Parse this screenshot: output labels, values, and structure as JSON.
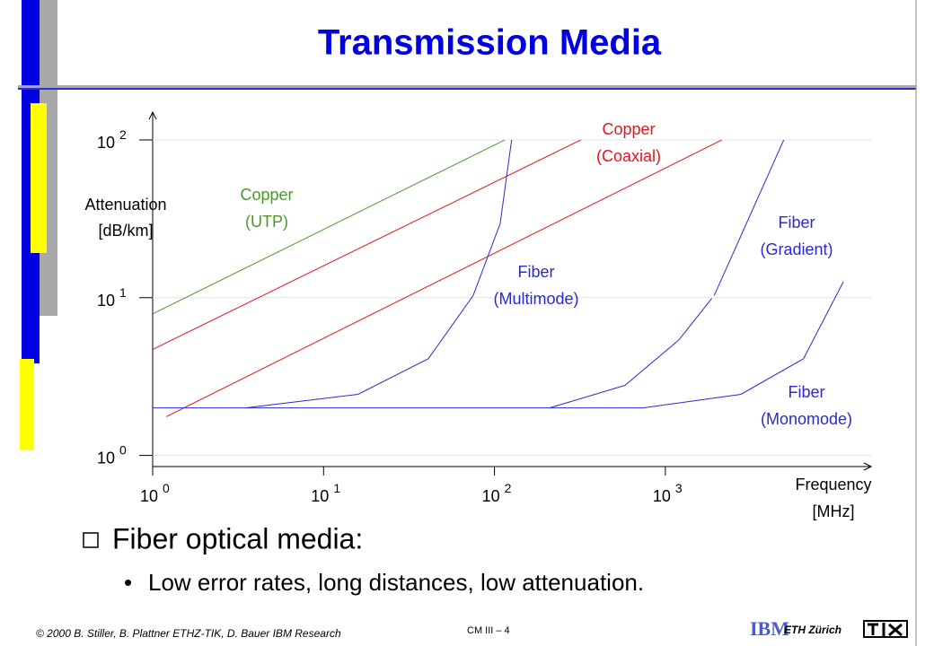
{
  "title": "Transmission Media",
  "bullets": {
    "main": "Fiber optical media:",
    "sub": "Low error rates, long distances, low attenuation."
  },
  "footer": {
    "copyright": "© 2000  B. Stiller, B. Plattner ETHZ-TIK, D. Bauer IBM Research",
    "page": "CM III  – 4",
    "logo": "IBM",
    "institute": "ETH Zürich"
  },
  "chart_data": {
    "type": "line",
    "log_x": true,
    "log_y": true,
    "xlabel": [
      "Frequency",
      "[MHz]"
    ],
    "ylabel": [
      "Attenuation",
      "[dB/km]"
    ],
    "xlim": [
      1,
      16000
    ],
    "ylim": [
      0.85,
      150
    ],
    "xticks": [
      {
        "value": 1,
        "label": "10 0"
      },
      {
        "value": 10,
        "label": "10 1"
      },
      {
        "value": 100,
        "label": "10 2"
      },
      {
        "value": 1000,
        "label": "10 3"
      }
    ],
    "yticks": [
      {
        "value": 1,
        "label": "10 0"
      },
      {
        "value": 10,
        "label": "10 1"
      },
      {
        "value": 100,
        "label": "10 2"
      }
    ],
    "series": [
      {
        "name": "Copper (UTP)",
        "color": "#4a9a2a",
        "x": [
          1,
          115
        ],
        "values": [
          7.9,
          100
        ]
      },
      {
        "name": "Copper (Coaxial)",
        "color": "#e8141c",
        "x": [
          1,
          320,
          null,
          1.2,
          2140
        ],
        "values": [
          4.7,
          100,
          null,
          1.76,
          100
        ]
      },
      {
        "name": "Fiber (Multimode)",
        "color": "#2a2ad0",
        "x": [
          3.5,
          15.9,
          41,
          75,
          108,
          126
        ],
        "values": [
          2.0,
          2.44,
          4.1,
          10.3,
          29.5,
          100
        ]
      },
      {
        "name": "Fiber (Gradient)",
        "color": "#2a2ad0",
        "x": [
          210,
          580,
          1200,
          1870,
          null,
          1930,
          4930
        ],
        "values": [
          2.0,
          2.78,
          5.4,
          9.9,
          null,
          10.3,
          100
        ]
      },
      {
        "name": "Fiber (Monomode)",
        "color": "#2a2ad0",
        "x": [
          1,
          740,
          2770,
          6430,
          11000
        ],
        "values": [
          2.0,
          2.0,
          2.44,
          4.1,
          12.6
        ]
      }
    ],
    "grid": true
  }
}
